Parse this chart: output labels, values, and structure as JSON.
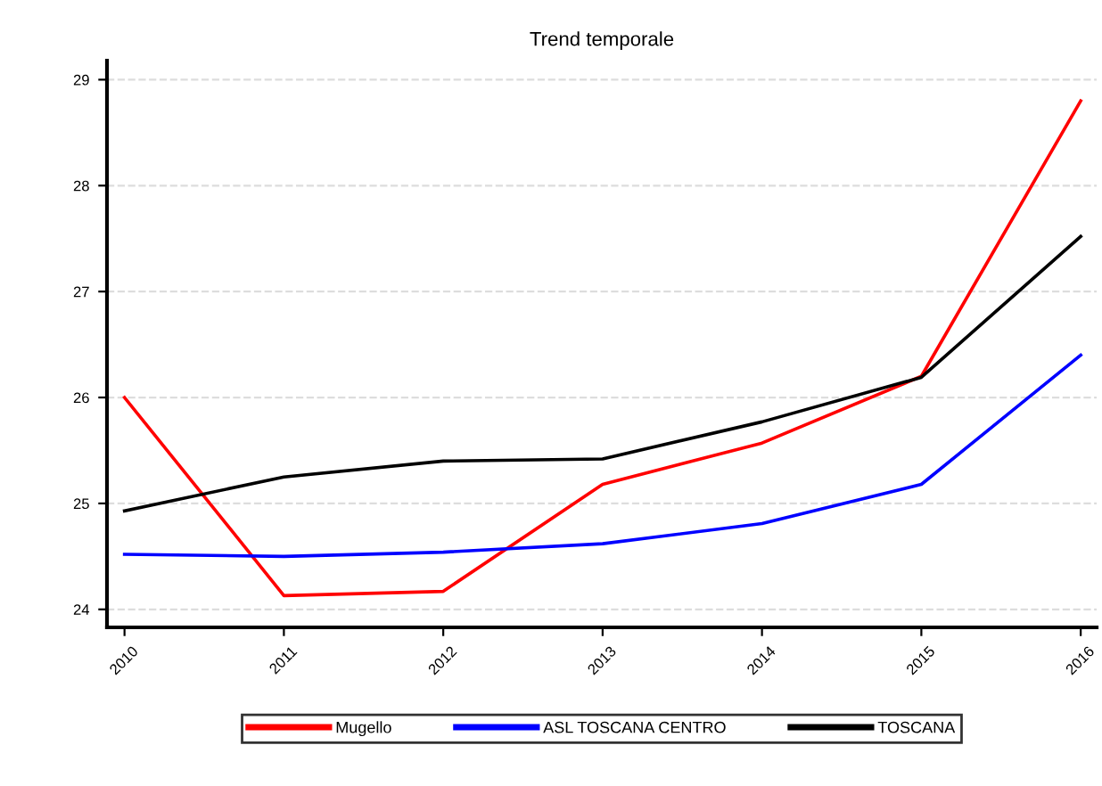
{
  "chart_data": {
    "type": "line",
    "title": "Trend temporale",
    "x": [
      2010,
      2011,
      2012,
      2013,
      2014,
      2015,
      2016
    ],
    "series": [
      {
        "name": "Mugello",
        "color": "#ff0000",
        "values": [
          26.0,
          24.13,
          24.17,
          25.18,
          25.57,
          26.2,
          28.8
        ]
      },
      {
        "name": "ASL TOSCANA CENTRO",
        "color": "#0000ff",
        "values": [
          24.52,
          24.5,
          24.54,
          24.62,
          24.81,
          25.18,
          26.4
        ]
      },
      {
        "name": "TOSCANA",
        "color": "#000000",
        "values": [
          24.93,
          25.25,
          25.4,
          25.42,
          25.77,
          26.19,
          27.52
        ]
      }
    ],
    "xlim": [
      2009.89,
      2016.1
    ],
    "xticks": [
      2010,
      2011,
      2012,
      2013,
      2014,
      2015,
      2016
    ],
    "ylim": [
      23.83,
      29.18
    ],
    "yticks": [
      24,
      25,
      26,
      27,
      28,
      29
    ],
    "grid": "y",
    "legend": "bottom",
    "marker": "none",
    "line_style": "solid"
  }
}
